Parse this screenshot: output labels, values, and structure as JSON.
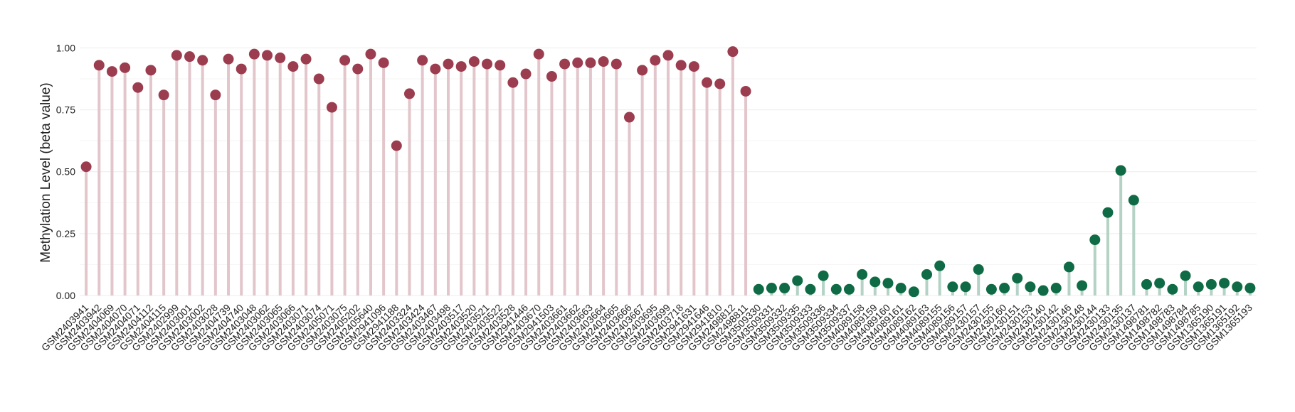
{
  "chart_data": {
    "type": "lollipop",
    "y_label": "Methylation Level (beta value)",
    "ylim": [
      0,
      1.03
    ],
    "yticks": [
      {
        "value": 0,
        "label": "0.00"
      },
      {
        "value": 0.25,
        "label": "0.25"
      },
      {
        "value": 0.5,
        "label": "0.50"
      },
      {
        "value": 0.75,
        "label": "0.75"
      },
      {
        "value": 1,
        "label": "1.00"
      }
    ],
    "grid": true,
    "series": [
      {
        "color": "#9b3d4f",
        "stem_color": "#e2c6cc",
        "categories": [
          "GSM2403941",
          "GSM2403942",
          "GSM2404069",
          "GSM2404070",
          "GSM2404071",
          "GSM2404112",
          "GSM2404115",
          "GSM2402999",
          "GSM2403001",
          "GSM2403002",
          "GSM2403028",
          "GSM2404739",
          "GSM2404740",
          "GSM2403048",
          "GSM2403062",
          "GSM2403065",
          "GSM2403066",
          "GSM2403071",
          "GSM2403074",
          "GSM2405071",
          "GSM2403075",
          "GSM2405202",
          "GSM2405640",
          "GSM2941096",
          "GSM2941188",
          "GSM2403324",
          "GSM2403424",
          "GSM2403467",
          "GSM2403498",
          "GSM2403517",
          "GSM2403520",
          "GSM2403521",
          "GSM2403522",
          "GSM2403528",
          "GSM2941446",
          "GSM2403670",
          "GSM2941503",
          "GSM2403661",
          "GSM2403662",
          "GSM2403663",
          "GSM2403664",
          "GSM2403665",
          "GSM2403666",
          "GSM2403667",
          "GSM2403695",
          "GSM2403699",
          "GSM2403718",
          "GSM2941631",
          "GSM2941646",
          "GSM2941810",
          "GSM2498812",
          "GSM2498811"
        ],
        "values": [
          0.52,
          0.93,
          0.905,
          0.92,
          0.84,
          0.91,
          0.81,
          0.97,
          0.965,
          0.95,
          0.81,
          0.955,
          0.915,
          0.975,
          0.97,
          0.96,
          0.925,
          0.955,
          0.875,
          0.76,
          0.95,
          0.915,
          0.975,
          0.94,
          0.605,
          0.815,
          0.95,
          0.915,
          0.935,
          0.925,
          0.945,
          0.935,
          0.93,
          0.86,
          0.895,
          0.975,
          0.885,
          0.935,
          0.94,
          0.94,
          0.945,
          0.935,
          0.72,
          0.91,
          0.95,
          0.97,
          0.93,
          0.925,
          0.86,
          0.855,
          0.985,
          0.825
        ]
      },
      {
        "color": "#0f6b45",
        "stem_color": "#b4d2c5",
        "categories": [
          "GSM3509330",
          "GSM3509331",
          "GSM3509332",
          "GSM3509335",
          "GSM3509333",
          "GSM3509336",
          "GSM3509334",
          "GSM3509337",
          "GSM4089158",
          "GSM4089159",
          "GSM4089160",
          "GSM4089161",
          "GSM4089162",
          "GSM4089163",
          "GSM4089155",
          "GSM4089156",
          "GSM4089157",
          "GSM2430157",
          "GSM2430155",
          "GSM2430160",
          "GSM2430151",
          "GSM2430153",
          "GSM2430140",
          "GSM2430142",
          "GSM2430146",
          "GSM2430148",
          "GSM2430144",
          "GSM2430133",
          "GSM2430135",
          "GSM2430137",
          "GSM1498781",
          "GSM1498782",
          "GSM1498783",
          "GSM1498784",
          "GSM1498785",
          "GSM1365190",
          "GSM1365191",
          "GSM1365192",
          "GSM1365193"
        ],
        "values": [
          0.025,
          0.03,
          0.03,
          0.06,
          0.025,
          0.08,
          0.025,
          0.025,
          0.085,
          0.055,
          0.05,
          0.03,
          0.015,
          0.085,
          0.12,
          0.035,
          0.035,
          0.105,
          0.025,
          0.03,
          0.07,
          0.035,
          0.02,
          0.03,
          0.115,
          0.04,
          0.225,
          0.335,
          0.505,
          0.385,
          0.045,
          0.05,
          0.025,
          0.08,
          0.035,
          0.045,
          0.05,
          0.035,
          0.03
        ]
      }
    ]
  }
}
